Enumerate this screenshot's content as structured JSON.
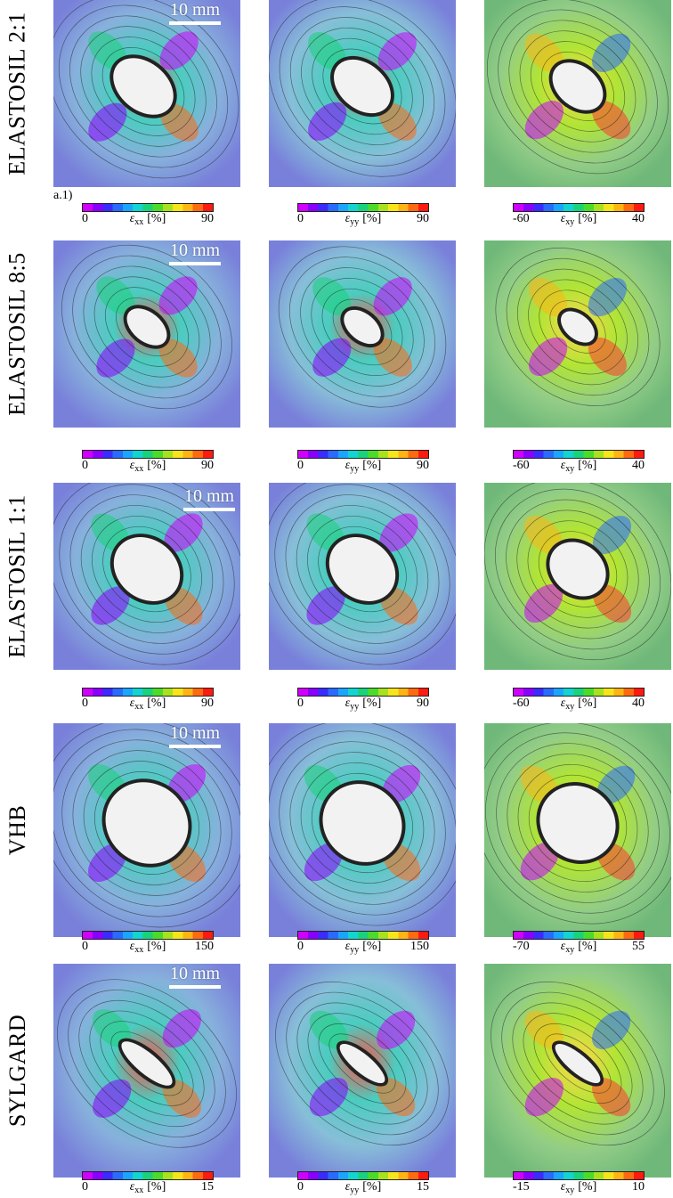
{
  "figure": {
    "scale_bar_text": "10 mm",
    "sublabel": "a.1)",
    "column_symbols": [
      "ε",
      "ε",
      "ε"
    ],
    "column_subscripts": [
      "xx",
      "yy",
      "xy"
    ],
    "unit": "[%]",
    "rows": [
      {
        "label": "ELASTOSIL 2:1",
        "colorbars": [
          {
            "min": "0",
            "max": "90"
          },
          {
            "min": "0",
            "max": "90"
          },
          {
            "min": "-60",
            "max": "40"
          }
        ]
      },
      {
        "label": "ELASTOSIL 8:5",
        "colorbars": [
          {
            "min": "0",
            "max": "90"
          },
          {
            "min": "0",
            "max": "90"
          },
          {
            "min": "-60",
            "max": "40"
          }
        ]
      },
      {
        "label": "ELASTOSIL 1:1",
        "colorbars": [
          {
            "min": "0",
            "max": "90"
          },
          {
            "min": "0",
            "max": "90"
          },
          {
            "min": "-60",
            "max": "40"
          }
        ]
      },
      {
        "label": "VHB",
        "colorbars": [
          {
            "min": "0",
            "max": "150"
          },
          {
            "min": "0",
            "max": "150"
          },
          {
            "min": "-70",
            "max": "55"
          }
        ]
      },
      {
        "label": "SYLGARD",
        "colorbars": [
          {
            "min": "0",
            "max": "15"
          },
          {
            "min": "0",
            "max": "15"
          },
          {
            "min": "-15",
            "max": "10"
          }
        ]
      }
    ]
  },
  "colors": {
    "colormap": [
      "#d000ff",
      "#8a00ff",
      "#3a2bff",
      "#2a6bff",
      "#1aa6ff",
      "#12d4d0",
      "#19d27a",
      "#4bdc2a",
      "#a8e21e",
      "#f5e51a",
      "#ffb414",
      "#ff6a10",
      "#ff1a10"
    ],
    "field_xx": "#7aa8d8",
    "field_yy": "#7ab7d4",
    "field_xy": "#86c77a",
    "hole": "#f2f2f2"
  }
}
